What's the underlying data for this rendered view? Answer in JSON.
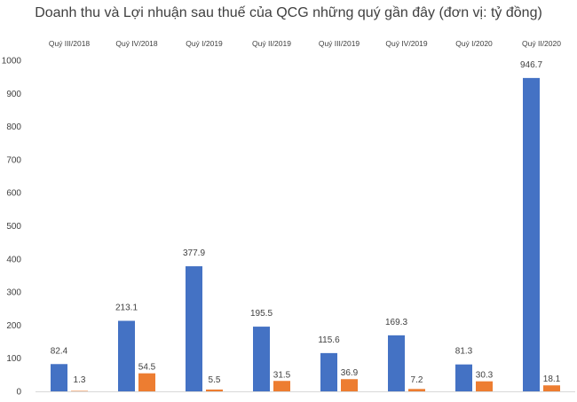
{
  "chart_data": {
    "type": "bar",
    "title": "Doanh thu và Lợi nhuận sau thuế của QCG những quý gần đây (đơn vị: tỷ đồng)",
    "categories": [
      "Quý III/2018",
      "Quý IV/2018",
      "Quý I/2019",
      "Quý II/2019",
      "Quý III/2019",
      "Quý IV/2019",
      "Quý I/2020",
      "Quý II/2020"
    ],
    "series": [
      {
        "values": [
          82.4,
          213.1,
          377.9,
          195.5,
          115.6,
          169.3,
          81.3,
          946.7
        ],
        "labels": [
          "82.4",
          "213.1",
          "377.9",
          "195.5",
          "115.6",
          "169.3",
          "81.3",
          "946.7"
        ],
        "color": "#4472C4"
      },
      {
        "values": [
          1.3,
          54.5,
          5.5,
          31.5,
          36.9,
          7.2,
          30.3,
          18.1
        ],
        "labels": [
          "1.3",
          "54.5",
          "5.5",
          "31.5",
          "36.9",
          "7.2",
          "30.3",
          "18.1"
        ],
        "color": "#ED7D31"
      }
    ],
    "ylim": [
      0,
      1000
    ],
    "yticks": [
      0,
      100,
      200,
      300,
      400,
      500,
      600,
      700,
      800,
      900,
      1000
    ],
    "category_labels_position": "top",
    "grid": false,
    "legend": "none",
    "xlabel": "",
    "ylabel": ""
  }
}
